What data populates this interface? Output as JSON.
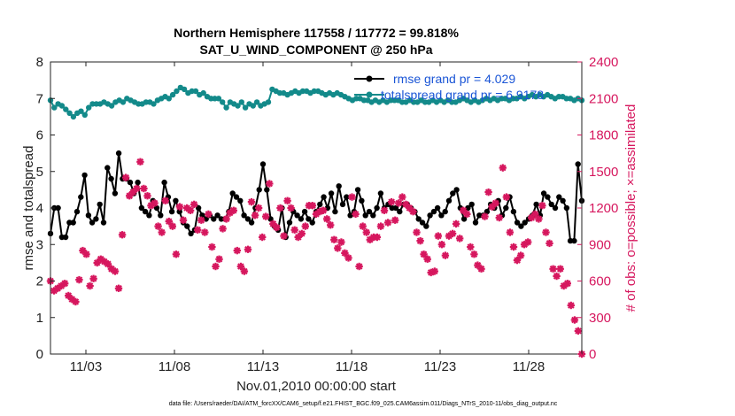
{
  "chart_data": {
    "type": "line",
    "title_line1": "Northern Hemisphere 117558 / 117772 = 99.818%",
    "title_line2": "SAT_U_WIND_COMPONENT @ 250 hPa",
    "xlabel": "Nov.01,2010 00:00:00 start",
    "ylabel_left": "rmse and totalspread",
    "ylabel_right": "# of obs: o=possible; ×=assimilated",
    "xlim": [
      1,
      31
    ],
    "ylim_left": [
      0,
      8
    ],
    "ylim_right": [
      0,
      2400
    ],
    "x_ticks": [
      3,
      8,
      13,
      18,
      23,
      28
    ],
    "x_tick_labels": [
      "11/03",
      "11/08",
      "11/13",
      "11/18",
      "11/23",
      "11/28"
    ],
    "y_ticks_left": [
      "0",
      "1",
      "2",
      "3",
      "4",
      "5",
      "6",
      "7",
      "8"
    ],
    "y_ticks_right": [
      "0",
      "300",
      "600",
      "900",
      "1200",
      "1500",
      "1800",
      "2100",
      "2400"
    ],
    "footer": "data file: /Users/raeder/DAI/ATM_forcXX/CAM6_setup/f.e21.FHIST_BGC.f09_025.CAM6assim.011/Diags_NTrS_2010-11/obs_diag_output.nc",
    "colors": {
      "rmse": "#000000",
      "spread": "#138a8a",
      "obs": "#d6175e",
      "legend_text": "#1a55d6"
    },
    "series": [
      {
        "name": "rmse grand pr = 4.029",
        "axis": "left",
        "values": [
          3.3,
          4.0,
          4.0,
          3.2,
          3.2,
          3.6,
          3.6,
          3.9,
          4.3,
          4.9,
          3.8,
          3.6,
          3.7,
          4.1,
          3.6,
          5.1,
          4.8,
          4.4,
          5.5,
          4.8,
          4.8,
          4.7,
          4.4,
          4.7,
          4.0,
          3.9,
          3.8,
          4.2,
          4.0,
          3.8,
          4.7,
          4.3,
          3.9,
          4.2,
          3.9,
          3.6,
          3.5,
          3.3,
          3.4,
          4.0,
          3.8,
          3.7,
          3.8,
          3.7,
          3.8,
          3.7,
          3.7,
          3.9,
          4.4,
          4.3,
          4.2,
          3.8,
          3.7,
          3.6,
          4.0,
          4.5,
          5.2,
          4.5,
          3.7,
          3.5,
          3.4,
          4.0,
          3.2,
          3.6,
          3.9,
          3.8,
          3.7,
          3.9,
          3.7,
          3.6,
          3.9,
          4.1,
          4.3,
          4.0,
          4.4,
          3.9,
          4.6,
          4.1,
          4.3,
          3.8,
          3.9,
          4.5,
          4.2,
          3.8,
          3.9,
          3.8,
          4.0,
          4.4,
          4.0,
          4.1,
          4.0,
          4.0,
          3.9,
          4.1,
          4.1,
          4.0,
          3.9,
          3.7,
          3.6,
          3.5,
          3.8,
          3.9,
          4.0,
          3.8,
          3.9,
          4.2,
          4.4,
          4.5,
          4.0,
          3.7,
          4.0,
          4.1,
          3.6,
          3.8,
          3.8,
          3.9,
          4.1,
          4.0,
          4.2,
          3.8,
          4.0,
          4.3,
          3.9,
          3.6,
          3.5,
          3.6,
          3.7,
          3.8,
          4.1,
          3.8,
          4.4,
          4.3,
          4.1,
          4.0,
          4.3,
          4.2,
          4.0,
          3.1,
          3.1,
          5.2,
          4.2
        ]
      },
      {
        "name": "totalspread grand pr = 6.9178",
        "axis": "left",
        "values": [
          6.95,
          6.75,
          6.85,
          6.8,
          6.7,
          6.6,
          6.5,
          6.6,
          6.65,
          6.55,
          6.75,
          6.85,
          6.85,
          6.85,
          6.9,
          6.85,
          6.8,
          6.9,
          6.95,
          6.9,
          7.0,
          6.95,
          6.9,
          6.85,
          6.85,
          6.9,
          6.9,
          6.85,
          6.95,
          7.0,
          7.05,
          7.0,
          7.1,
          7.2,
          7.3,
          7.25,
          7.15,
          7.2,
          7.2,
          7.1,
          7.15,
          7.05,
          7.0,
          7.0,
          7.0,
          6.9,
          6.75,
          6.9,
          6.85,
          6.8,
          6.9,
          6.75,
          6.85,
          6.8,
          6.9,
          6.8,
          6.85,
          6.9,
          7.25,
          7.2,
          7.15,
          7.15,
          7.1,
          7.15,
          7.2,
          7.15,
          7.2,
          7.2,
          7.15,
          7.2,
          7.2,
          7.15,
          7.1,
          7.15,
          7.1,
          7.15,
          7.1,
          7.05,
          7.0,
          6.95,
          7.0,
          7.0,
          6.95,
          6.95,
          6.9,
          6.95,
          6.9,
          6.95,
          6.9,
          6.95,
          6.95,
          6.95,
          6.9,
          6.9,
          6.95,
          6.9,
          6.9,
          6.95,
          6.9,
          6.9,
          6.95,
          6.9,
          6.95,
          6.9,
          6.95,
          6.9,
          6.9,
          6.95,
          7.0,
          6.95,
          6.9,
          6.95,
          6.9,
          6.95,
          7.0,
          6.95,
          7.0,
          6.95,
          7.0,
          7.0,
          6.95,
          7.0,
          7.0,
          7.05,
          7.0,
          7.05,
          7.1,
          7.05,
          7.1,
          7.05,
          7.1,
          7.05,
          7.0,
          7.05,
          7.05,
          7.0,
          7.0,
          6.95,
          7.0,
          6.95
        ]
      },
      {
        "name": "# of obs assimilated",
        "axis": "right",
        "values": [
          600,
          520,
          540,
          560,
          580,
          480,
          450,
          430,
          610,
          850,
          820,
          560,
          620,
          750,
          780,
          760,
          740,
          700,
          680,
          540,
          980,
          1450,
          1300,
          1330,
          1360,
          1580,
          1360,
          1300,
          1220,
          1240,
          1050,
          1000,
          1260,
          1090,
          1050,
          820,
          1210,
          1100,
          1200,
          1180,
          1230,
          1020,
          1100,
          1000,
          1150,
          880,
          720,
          780,
          1030,
          1110,
          1160,
          1180,
          850,
          720,
          680,
          860,
          1250,
          1140,
          1200,
          960,
          1130,
          1400,
          1070,
          1040,
          1200,
          970,
          1260,
          1200,
          1020,
          960,
          990,
          1050,
          1220,
          1220,
          1150,
          1170,
          1180,
          1110,
          1060,
          940,
          870,
          920,
          830,
          790,
          1290,
          1150,
          720,
          1050,
          1000,
          940,
          960,
          960,
          1050,
          1180,
          1080,
          1250,
          1100,
          1240,
          1290,
          1230,
          1200,
          1170,
          1000,
          930,
          820,
          780,
          670,
          680,
          970,
          900,
          810,
          970,
          990,
          1070,
          950,
          1180,
          1150,
          880,
          820,
          730,
          700,
          1130,
          1330,
          1210,
          1240,
          1120,
          1530,
          1290,
          1000,
          880,
          770,
          810,
          900,
          920,
          1120,
          1150,
          1110,
          1220,
          1000,
          910,
          700,
          640,
          700,
          560,
          580,
          400,
          280,
          190,
          0
        ]
      }
    ],
    "legend": [
      {
        "label": "rmse grand pr = 4.029",
        "marker": "filled-circle",
        "color": "#000000"
      },
      {
        "label": "totalspread grand pr = 6.9178",
        "marker": "filled-circle",
        "color": "#138a8a"
      }
    ],
    "legend_position": "top-right"
  }
}
